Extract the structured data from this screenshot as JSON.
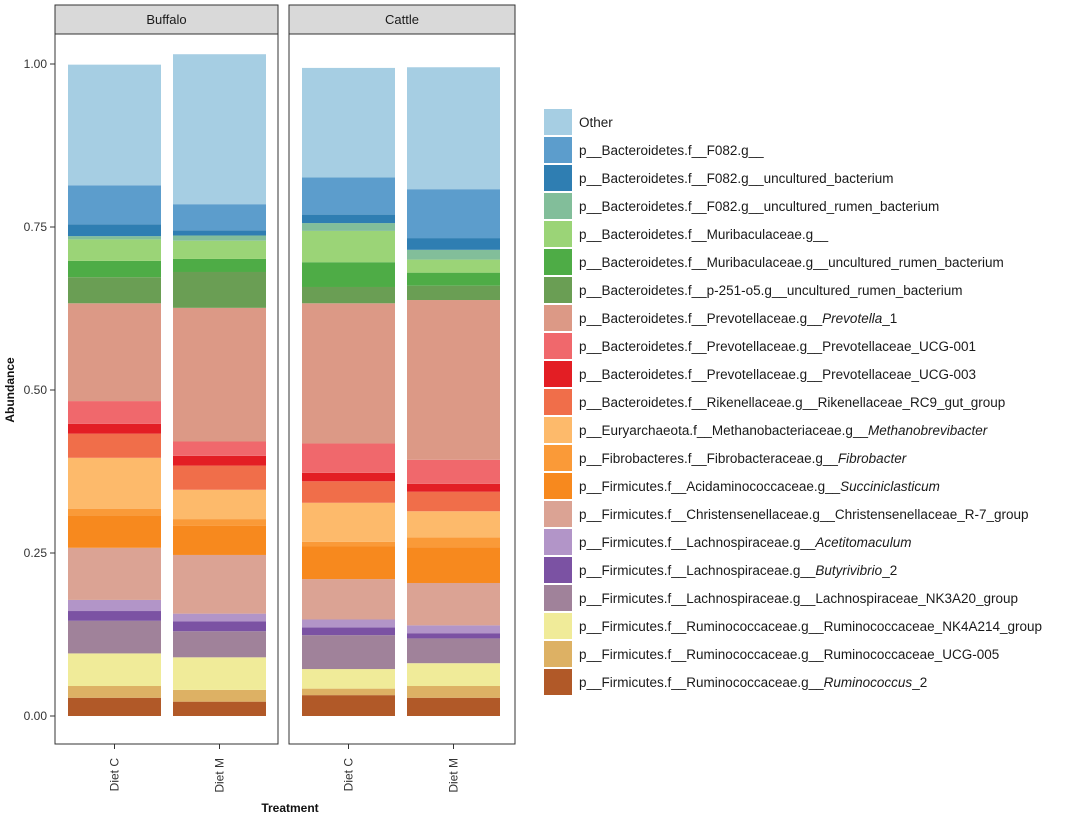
{
  "chart_data": {
    "type": "bar",
    "stacked": true,
    "title": "",
    "xlabel": "Treatment",
    "ylabel": "Abundance",
    "ylim": [
      0,
      1.05
    ],
    "yticks": [
      "0.00",
      "0.25",
      "0.50",
      "0.75",
      "1.00"
    ],
    "facets": [
      "Buffalo",
      "Cattle"
    ],
    "categories": [
      "Diet C",
      "Diet M"
    ],
    "legend_position": "right",
    "series": [
      {
        "name": "p__Firmicutes.f__Ruminococcaceae.g__Ruminococcus_2",
        "plain": "p__Firmicutes.f__Ruminococcaceae.g__",
        "italic": "Ruminococcus",
        "suffix": "_2",
        "color": "#B15928",
        "values": {
          "Buffalo": [
            0.028,
            0.022
          ],
          "Cattle": [
            0.032,
            0.028
          ]
        }
      },
      {
        "name": "p__Firmicutes.f__Ruminococcaceae.g__Ruminococcaceae_UCG-005",
        "plain": "p__Firmicutes.f__Ruminococcaceae.g__Ruminococcaceae_UCG-005",
        "italic": "",
        "suffix": "",
        "color": "#DDB164",
        "values": {
          "Buffalo": [
            0.018,
            0.018
          ],
          "Cattle": [
            0.01,
            0.018
          ]
        }
      },
      {
        "name": "p__Firmicutes.f__Ruminococcaceae.g__Ruminococcaceae_NK4A214_group",
        "plain": "p__Firmicutes.f__Ruminococcaceae.g__Ruminococcaceae_NK4A214_group",
        "italic": "",
        "suffix": "",
        "color": "#F0EB99",
        "values": {
          "Buffalo": [
            0.05,
            0.05
          ],
          "Cattle": [
            0.03,
            0.035
          ]
        }
      },
      {
        "name": "p__Firmicutes.f__Lachnospiraceae.g__Lachnospiraceae_NK3A20_group",
        "plain": "p__Firmicutes.f__Lachnospiraceae.g__Lachnospiraceae_NK3A20_group",
        "italic": "",
        "suffix": "",
        "color": "#A0829A",
        "values": {
          "Buffalo": [
            0.05,
            0.04
          ],
          "Cattle": [
            0.052,
            0.038
          ]
        }
      },
      {
        "name": "p__Firmicutes.f__Lachnospiraceae.g__Butyrivibrio_2",
        "plain": "p__Firmicutes.f__Lachnospiraceae.g__",
        "italic": "Butyrivibrio",
        "suffix": "_2",
        "color": "#7B52A3",
        "values": {
          "Buffalo": [
            0.015,
            0.015
          ],
          "Cattle": [
            0.012,
            0.008
          ]
        }
      },
      {
        "name": "p__Firmicutes.f__Lachnospiraceae.g__Acetitomaculum",
        "plain": "p__Firmicutes.f__Lachnospiraceae.g__",
        "italic": "Acetitomaculum",
        "suffix": "",
        "color": "#B295C8",
        "values": {
          "Buffalo": [
            0.017,
            0.012
          ],
          "Cattle": [
            0.012,
            0.012
          ]
        }
      },
      {
        "name": "p__Firmicutes.f__Christensenellaceae.g__Christensenellaceae_R-7_group",
        "plain": "p__Firmicutes.f__Christensenellaceae.g__Christensenellaceae_R-7_group",
        "italic": "",
        "suffix": "",
        "color": "#DBA394",
        "values": {
          "Buffalo": [
            0.08,
            0.09
          ],
          "Cattle": [
            0.062,
            0.065
          ]
        }
      },
      {
        "name": "p__Firmicutes.f__Acidaminococcaceae.g__Succiniclasticum",
        "plain": "p__Firmicutes.f__Acidaminococcaceae.g__",
        "italic": "Succiniclasticum",
        "suffix": "",
        "color": "#F7891E",
        "values": {
          "Buffalo": [
            0.05,
            0.045
          ],
          "Cattle": [
            0.05,
            0.055
          ]
        }
      },
      {
        "name": "p__Fibrobacteres.f__Fibrobacteraceae.g__Fibrobacter",
        "plain": "p__Fibrobacteres.f__Fibrobacteraceae.g__",
        "italic": "Fibrobacter",
        "suffix": "",
        "color": "#FA9A38",
        "values": {
          "Buffalo": [
            0.01,
            0.01
          ],
          "Cattle": [
            0.007,
            0.015
          ]
        }
      },
      {
        "name": "p__Euryarchaeota.f__Methanobacteriaceae.g__Methanobrevibacter",
        "plain": "p__Euryarchaeota.f__Methanobacteriaceae.g__",
        "italic": "Methanobrevibacter",
        "suffix": "",
        "color": "#FDBA6B",
        "values": {
          "Buffalo": [
            0.078,
            0.045
          ],
          "Cattle": [
            0.06,
            0.04
          ]
        }
      },
      {
        "name": "p__Bacteroidetes.f__Rikenellaceae.g__Rikenellaceae_RC9_gut_group",
        "plain": "p__Bacteroidetes.f__Rikenellaceae.g__Rikenellaceae_RC9_gut_group",
        "italic": "",
        "suffix": "",
        "color": "#F06E4A",
        "values": {
          "Buffalo": [
            0.037,
            0.037
          ],
          "Cattle": [
            0.033,
            0.03
          ]
        }
      },
      {
        "name": "p__Bacteroidetes.f__Prevotellaceae.g__Prevotellaceae_UCG-003",
        "plain": "p__Bacteroidetes.f__Prevotellaceae.g__Prevotellaceae_UCG-003",
        "italic": "",
        "suffix": "",
        "color": "#E31E24",
        "values": {
          "Buffalo": [
            0.015,
            0.015
          ],
          "Cattle": [
            0.013,
            0.012
          ]
        }
      },
      {
        "name": "p__Bacteroidetes.f__Prevotellaceae.g__Prevotellaceae_UCG-001",
        "plain": "p__Bacteroidetes.f__Prevotellaceae.g__Prevotellaceae_UCG-001",
        "italic": "",
        "suffix": "",
        "color": "#F0686C",
        "values": {
          "Buffalo": [
            0.035,
            0.022
          ],
          "Cattle": [
            0.045,
            0.037
          ]
        }
      },
      {
        "name": "p__Bacteroidetes.f__Prevotellaceae.g__Prevotella_1",
        "plain": "p__Bacteroidetes.f__Prevotellaceae.g__",
        "italic": "Prevotella",
        "suffix": "_1",
        "color": "#DC9986",
        "values": {
          "Buffalo": [
            0.15,
            0.205
          ],
          "Cattle": [
            0.215,
            0.245
          ]
        }
      },
      {
        "name": "p__Bacteroidetes.f__p-251-o5.g__uncultured_rumen_bacterium",
        "plain": "p__Bacteroidetes.f__p-251-o5.g__uncultured_rumen_bacterium",
        "italic": "",
        "suffix": "",
        "color": "#6A9E54",
        "values": {
          "Buffalo": [
            0.04,
            0.055
          ],
          "Cattle": [
            0.025,
            0.022
          ]
        }
      },
      {
        "name": "p__Bacteroidetes.f__Muribaculaceae.g__uncultured_rumen_bacterium",
        "plain": "p__Bacteroidetes.f__Muribaculaceae.g__uncultured_rumen_bacterium",
        "italic": "",
        "suffix": "",
        "color": "#4EAC46",
        "values": {
          "Buffalo": [
            0.025,
            0.02
          ],
          "Cattle": [
            0.038,
            0.02
          ]
        }
      },
      {
        "name": "p__Bacteroidetes.f__Muribaculaceae.g__",
        "plain": "p__Bacteroidetes.f__Muribaculaceae.g__",
        "italic": "",
        "suffix": "",
        "color": "#9BD477",
        "values": {
          "Buffalo": [
            0.033,
            0.028
          ],
          "Cattle": [
            0.048,
            0.02
          ]
        }
      },
      {
        "name": "p__Bacteroidetes.f__F082.g__uncultured_rumen_bacterium",
        "plain": "p__Bacteroidetes.f__F082.g__uncultured_rumen_bacterium",
        "italic": "",
        "suffix": "",
        "color": "#82BE9A",
        "values": {
          "Buffalo": [
            0.005,
            0.008
          ],
          "Cattle": [
            0.012,
            0.015
          ]
        }
      },
      {
        "name": "p__Bacteroidetes.f__F082.g__uncultured_bacterium",
        "plain": "p__Bacteroidetes.f__F082.g__uncultured_bacterium",
        "italic": "",
        "suffix": "",
        "color": "#2F7EB2",
        "values": {
          "Buffalo": [
            0.018,
            0.008
          ],
          "Cattle": [
            0.013,
            0.018
          ]
        }
      },
      {
        "name": "p__Bacteroidetes.f__F082.g__",
        "plain": "p__Bacteroidetes.f__F082.g__",
        "italic": "",
        "suffix": "",
        "color": "#5C9DCC",
        "values": {
          "Buffalo": [
            0.06,
            0.04
          ],
          "Cattle": [
            0.057,
            0.075
          ]
        }
      },
      {
        "name": "Other",
        "plain": "Other",
        "italic": "",
        "suffix": "",
        "color": "#A6CEE3",
        "values": {
          "Buffalo": [
            0.185,
            0.23
          ],
          "Cattle": [
            0.168,
            0.187
          ]
        }
      }
    ]
  }
}
